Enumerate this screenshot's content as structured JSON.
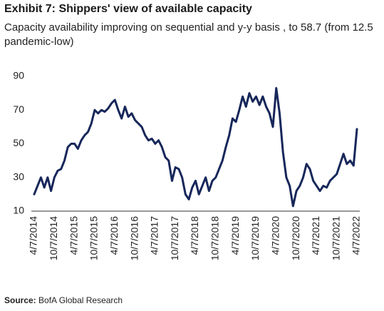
{
  "chart_data": {
    "type": "line",
    "title": "Exhibit 7: Shippers' view of available capacity",
    "subtitle": "Capacity availability improving on sequential and y-y basis , to 58.7 (from 12.5 pandemic-low)",
    "source_label": "Source:",
    "source_text": "BofA Global Research",
    "categories": [
      "4/7/2014",
      null,
      null,
      null,
      null,
      null,
      "10/7/2014",
      null,
      null,
      null,
      null,
      null,
      "4/7/2015",
      null,
      null,
      null,
      null,
      null,
      "10/7/2015",
      null,
      null,
      null,
      null,
      null,
      "4/7/2016",
      null,
      null,
      null,
      null,
      null,
      "10/7/2016",
      null,
      null,
      null,
      null,
      null,
      "4/7/2017",
      null,
      null,
      null,
      null,
      null,
      "10/7/2017",
      null,
      null,
      null,
      null,
      null,
      "4/7/2018",
      null,
      null,
      null,
      null,
      null,
      "10/7/2018",
      null,
      null,
      null,
      null,
      null,
      "4/7/2019",
      null,
      null,
      null,
      null,
      null,
      "10/7/2019",
      null,
      null,
      null,
      null,
      null,
      "4/7/2020",
      null,
      null,
      null,
      null,
      null,
      "10/7/2020",
      null,
      null,
      null,
      null,
      null,
      "4/7/2021",
      null,
      null,
      null,
      null,
      null,
      "10/7/2021",
      null,
      null,
      null,
      null,
      null,
      "4/7/2022"
    ],
    "series": [
      {
        "name": "Capacity availability",
        "color": "#17275a",
        "values": [
          20,
          25,
          30,
          24,
          30,
          22,
          30,
          34,
          35,
          40,
          48,
          50,
          50,
          47,
          52,
          55,
          57,
          62,
          70,
          68,
          70,
          69,
          71,
          74,
          76,
          70,
          65,
          72,
          66,
          68,
          64,
          62,
          60,
          55,
          52,
          53,
          50,
          52,
          48,
          42,
          40,
          28,
          36,
          35,
          30,
          20,
          17,
          24,
          28,
          20,
          25,
          30,
          22,
          28,
          30,
          35,
          40,
          48,
          55,
          65,
          63,
          70,
          78,
          72,
          80,
          75,
          78,
          73,
          78,
          72,
          68,
          60,
          83,
          68,
          45,
          30,
          25,
          13,
          22,
          25,
          30,
          38,
          35,
          28,
          25,
          22,
          25,
          24,
          28,
          30,
          32,
          38,
          44,
          38,
          40,
          37,
          58.7
        ]
      }
    ],
    "ylim": [
      10,
      90
    ],
    "yticks": [
      10,
      30,
      50,
      70,
      90
    ],
    "grid": false
  }
}
